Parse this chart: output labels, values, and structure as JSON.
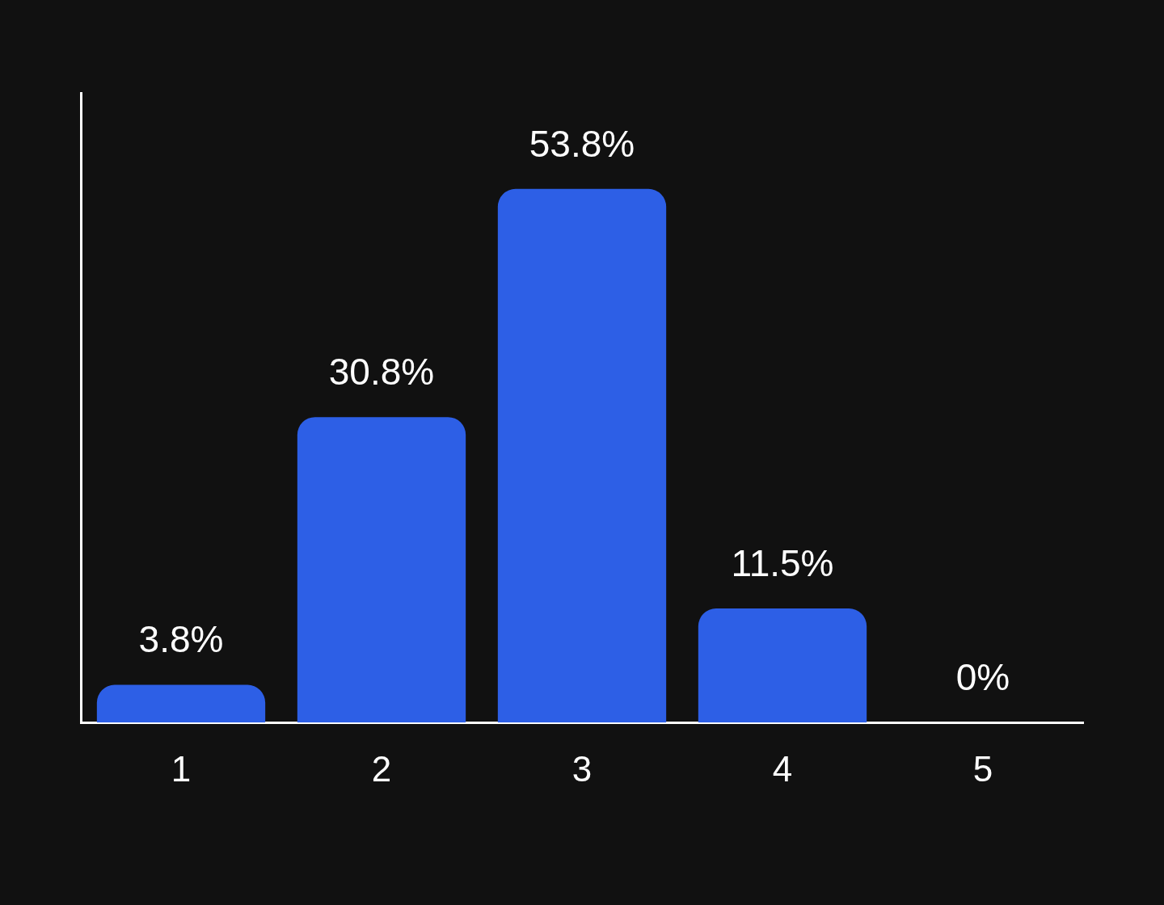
{
  "chart_data": {
    "type": "bar",
    "categories": [
      "1",
      "2",
      "3",
      "4",
      "5"
    ],
    "values": [
      3.8,
      30.8,
      53.8,
      11.5,
      0
    ],
    "value_labels": [
      "3.8%",
      "30.8%",
      "53.8%",
      "11.5%",
      "0%"
    ],
    "color": "#2d5fe6",
    "grid": false,
    "legend": false,
    "tick_labels": "x"
  }
}
